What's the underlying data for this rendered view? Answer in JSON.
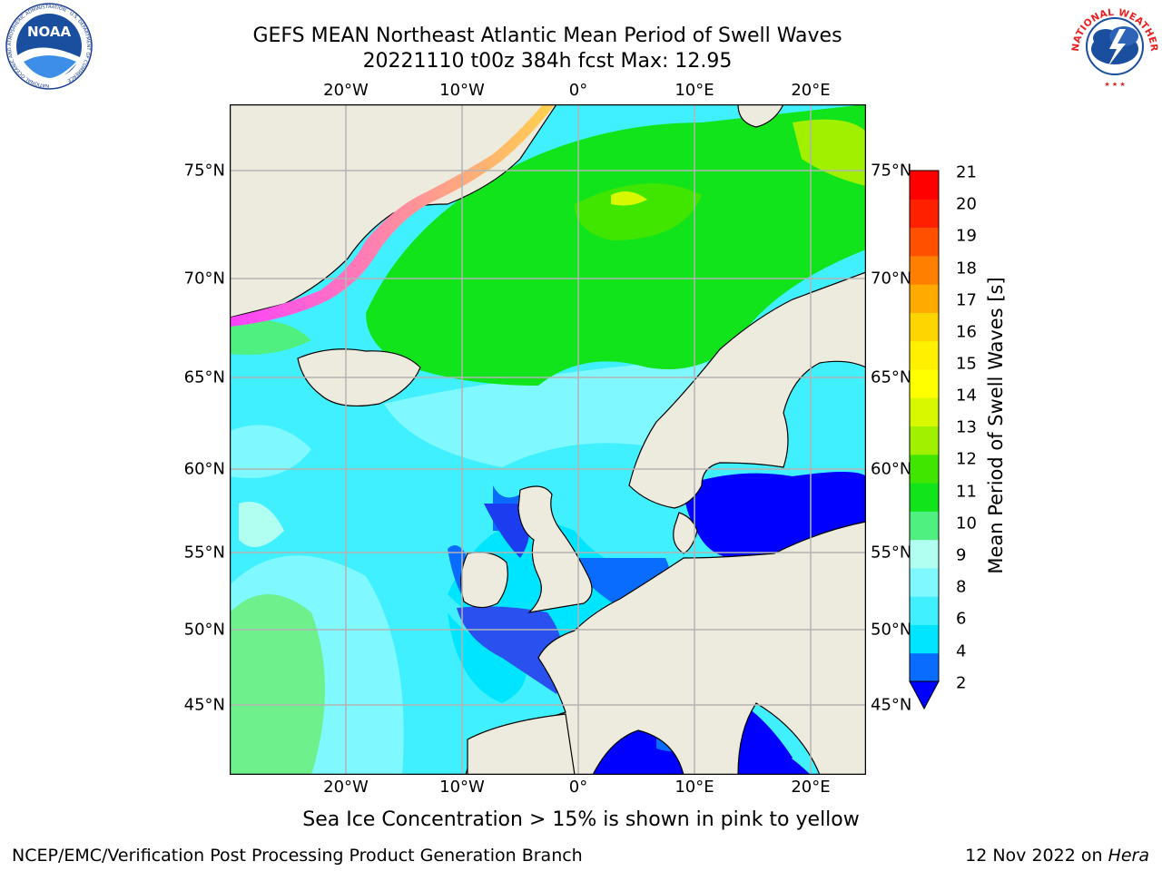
{
  "title": {
    "line1": "GEFS MEAN Northeast Atlantic Mean Period of Swell Waves",
    "line2": "20221110 t00z 384h fcst   Max: 12.95"
  },
  "logos": {
    "noaa": {
      "text": "NOAA",
      "ring_text": "NATIONAL OCEANIC AND ATMOSPHERIC ADMINISTRATION · U.S. DEPARTMENT OF COMMERCE"
    },
    "nws": {
      "ring_text": "NATIONAL WEATHER SERVICE"
    }
  },
  "map": {
    "lon_labels": [
      "20°W",
      "10°W",
      "0°",
      "10°E",
      "20°E"
    ],
    "lat_labels": [
      "75°N",
      "70°N",
      "65°N",
      "60°N",
      "55°N",
      "50°N",
      "45°N"
    ],
    "colors": {
      "land": "#ecebdd",
      "grid": "#b3b3b3",
      "ice_pink": "#ff40ff",
      "ice_yellow": "#ffd24a"
    }
  },
  "colorbar": {
    "label": "Mean Period of Swell Waves [s]",
    "ticks": [
      "21",
      "20",
      "19",
      "18",
      "17",
      "16",
      "15",
      "14",
      "13",
      "12",
      "11",
      "10",
      "9",
      "8",
      "6",
      "4",
      "2"
    ],
    "colors_bottom_to_top": [
      "#0a6cff",
      "#00e5ff",
      "#40f0ff",
      "#7ff8ff",
      "#b0fff0",
      "#50f080",
      "#12e41c",
      "#40e600",
      "#a0f000",
      "#d8f800",
      "#ffff00",
      "#ffef00",
      "#ffd500",
      "#ffaa00",
      "#ff8000",
      "#ff5000",
      "#ff2000",
      "#ff0000"
    ],
    "under_color": "#0000ff"
  },
  "caption": "Sea Ice Concentration > 15% is shown in pink to yellow",
  "footer": {
    "left": "NCEP/EMC/Verification Post Processing Product Generation Branch",
    "right_date": "12 Nov 2022 on ",
    "right_host": "Hera"
  }
}
